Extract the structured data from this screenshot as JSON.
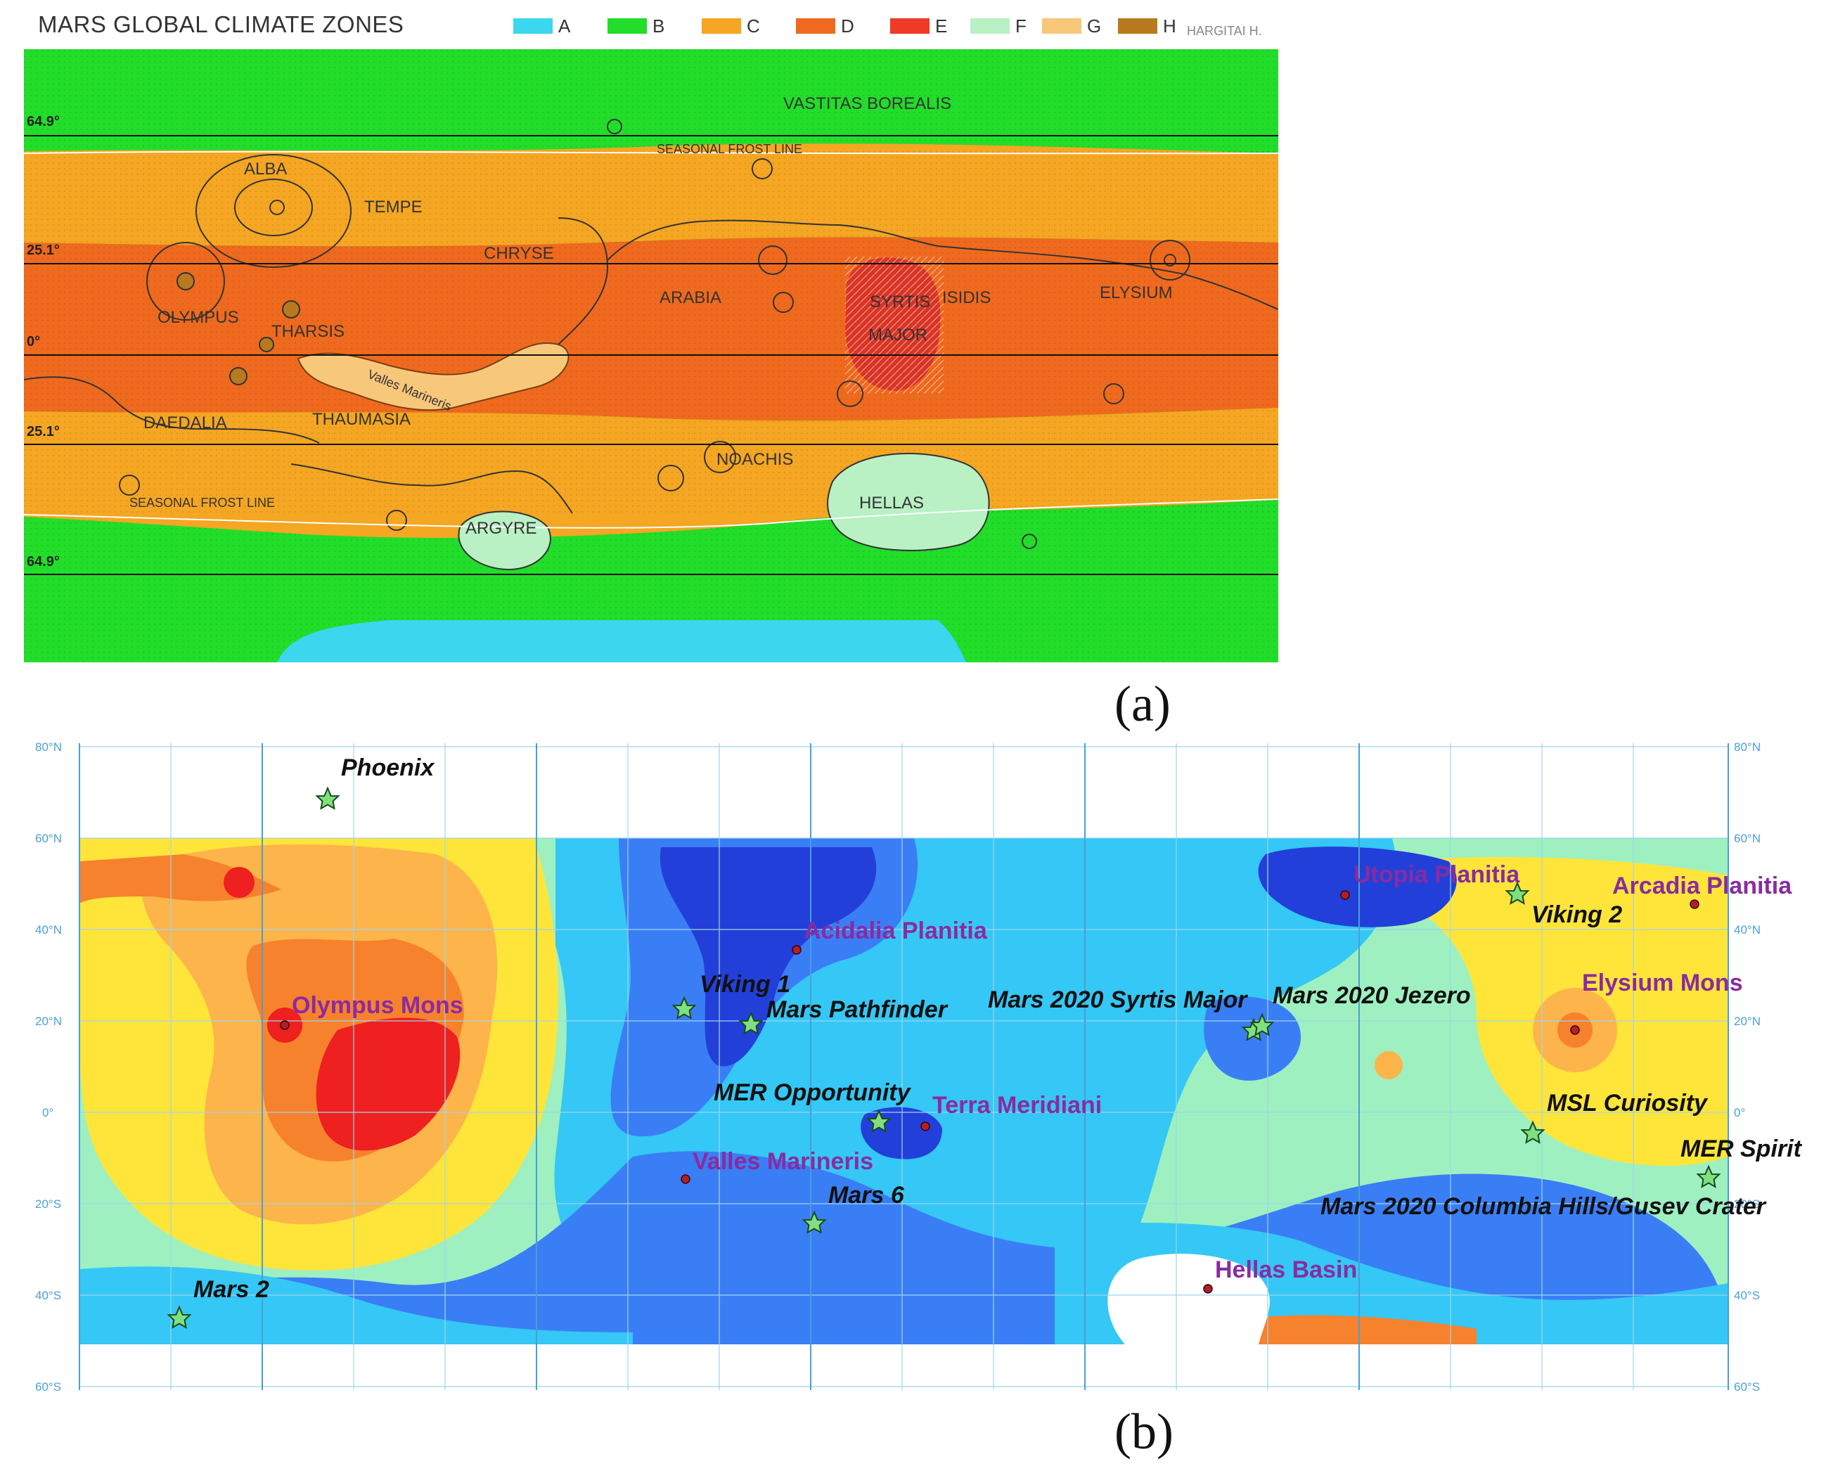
{
  "panel_a": {
    "title": "MARS GLOBAL CLIMATE ZONES",
    "credit": "HARGITAI H.",
    "panel_letter": "(a)",
    "legend": [
      {
        "label": "A",
        "color": "#3ad7ef"
      },
      {
        "label": "B",
        "color": "#22dd2a"
      },
      {
        "label": "C",
        "color": "#f5a623"
      },
      {
        "label": "D",
        "color": "#ef6a1e"
      },
      {
        "label": "E",
        "color": "#ef3a26"
      },
      {
        "label": "F",
        "color": "#b9f0c4"
      },
      {
        "label": "G",
        "color": "#f7c77a"
      },
      {
        "label": "H",
        "color": "#b77a1e"
      }
    ],
    "latitudes": {
      "north_polar": "64.9°",
      "north_tropic": "25.1°",
      "equator": "0°",
      "south_tropic": "25.1°",
      "south_polar": "64.9°"
    },
    "regions": {
      "vastitas": "VASTITAS BOREALIS",
      "frost_north": "SEASONAL FROST LINE",
      "alba": "ALBA",
      "tempe": "TEMPE",
      "chryse": "CHRYSE",
      "olympus": "OLYMPUS",
      "tharsis": "THARSIS",
      "arabia": "ARABIA",
      "syrtis": "SYRTIS",
      "major": "MAJOR",
      "isidis": "ISIDIS",
      "elysium": "ELYSIUM",
      "valles": "Valles Marineris",
      "daedalia": "DAEDALIA",
      "thaumasia": "THAUMASIA",
      "noachis": "NOACHIS",
      "hellas": "HELLAS",
      "frost_south": "SEASONAL FROST LINE",
      "argyre": "ARGYRE"
    }
  },
  "panel_b": {
    "panel_letter": "(b)",
    "lat_ticks": [
      "80°N",
      "60°N",
      "40°N",
      "20°N",
      "0°",
      "20°S",
      "40°S",
      "60°S"
    ],
    "missions": {
      "phoenix": "Phoenix",
      "viking1": "Viking 1",
      "pathfinder": "Mars Pathfinder",
      "syrtis2020": "Mars 2020 Syrtis Major",
      "jezero2020": "Mars 2020 Jezero",
      "viking2": "Viking 2",
      "opportunity": "MER Opportunity",
      "curiosity": "MSL Curiosity",
      "spirit": "MER Spirit",
      "gusev2020": "Mars 2020 Columbia Hills/Gusev Crater",
      "mars6": "Mars 6",
      "mars2": "Mars 2"
    },
    "features": {
      "utopia": "Utopia Planitia",
      "arcadia": "Arcadia Planitia",
      "acidalia": "Acidalia Planitia",
      "olympus": "Olympus Mons",
      "elysium": "Elysium Mons",
      "meridiani": "Terra Meridiani",
      "valles": "Valles Marineris",
      "hellas": "Hellas Basin"
    },
    "colors": {
      "star": "#7fe07f",
      "feature_dot": "#b0202a",
      "feature_text": "#8a2ba0"
    }
  }
}
